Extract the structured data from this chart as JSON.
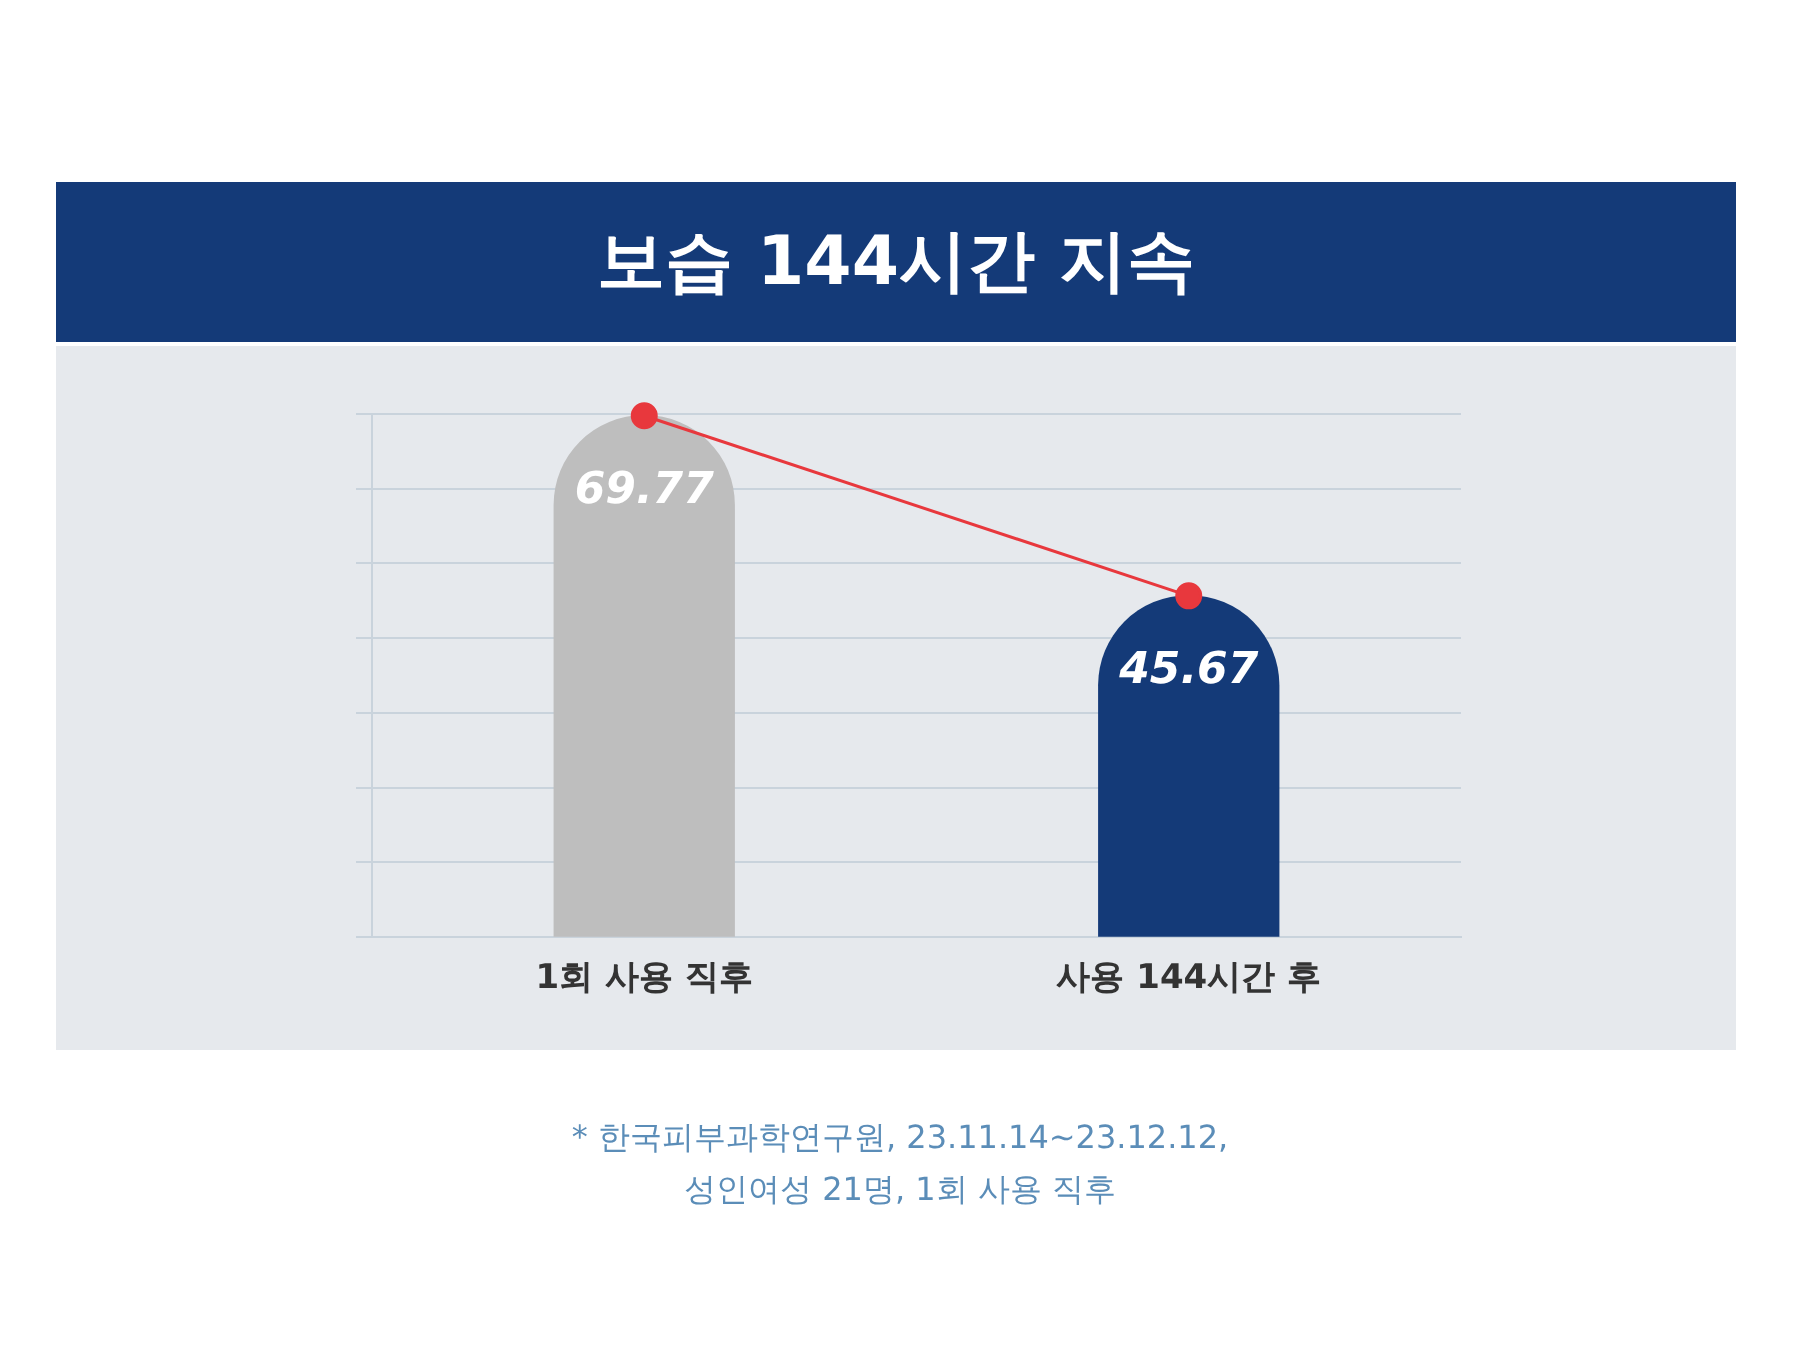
{
  "chart_data": {
    "type": "bar",
    "title": "보습 144시간 지속",
    "categories": [
      "1회 사용 직후",
      "사용 144시간 후"
    ],
    "series": [
      {
        "colors": [
          "#bebebe",
          "#143a78"
        ],
        "values": [
          69.77,
          45.67
        ],
        "value_labels": [
          "69.77",
          "45.67"
        ]
      },
      {
        "type": "line",
        "color": "#e8383d",
        "values": [
          69.77,
          45.67
        ],
        "marker": "circle"
      }
    ],
    "grid": "y",
    "tick_labels": "x",
    "legend": false,
    "annotations": [
      "* 한국피부과학연구원, 23.11.14~23.12.12,",
      "성인여성 21명, 1회 사용 직후"
    ]
  }
}
